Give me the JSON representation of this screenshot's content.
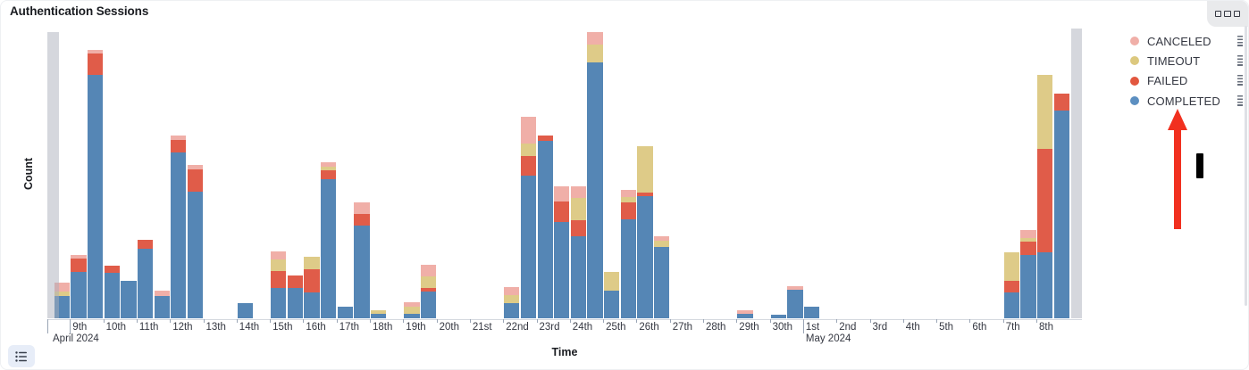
{
  "panel": {
    "title": "Authentication Sessions"
  },
  "icons": {
    "panel_menu": "three-squares-icon",
    "legend_toggle": "list-icon",
    "legend_item_handle": "drag-handle-icon",
    "annotation_arrow": "red-up-arrow"
  },
  "legend": {
    "position": "right",
    "items": [
      {
        "id": "canceled",
        "label": "CANCELED",
        "color": "#F0AFA8"
      },
      {
        "id": "timeout",
        "label": "TIMEOUT",
        "color": "#DCC87E"
      },
      {
        "id": "failed",
        "label": "FAILED",
        "color": "#E2573F"
      },
      {
        "id": "completed",
        "label": "COMPLETED",
        "color": "#5C8FC1"
      }
    ]
  },
  "annotations": {
    "arrow": {
      "color": "#F1301F",
      "direction": "up",
      "points_at": "COMPLETED legend item"
    },
    "marker_bar": {
      "color": "#000000"
    }
  },
  "chart_data": {
    "type": "bar",
    "stacked": true,
    "title": "Authentication Sessions",
    "xlabel": "Time",
    "ylabel": "Count",
    "grid": false,
    "legend_position": "right",
    "ylim": [
      0,
      327
    ],
    "y_tick_labels": [],
    "x_axis": {
      "bucket_interval": "12h",
      "range": "2024-04-08 to 2024-05-09",
      "day_tick_labels": [
        "9th",
        "10th",
        "11th",
        "12th",
        "13th",
        "14th",
        "15th",
        "16th",
        "17th",
        "18th",
        "19th",
        "20th",
        "21st",
        "22nd",
        "23rd",
        "24th",
        "25th",
        "26th",
        "27th",
        "28th",
        "29th",
        "30th",
        "1st",
        "2nd",
        "3rd",
        "4th",
        "5th",
        "6th",
        "7th",
        "8th"
      ],
      "month_labels": [
        {
          "text": "April 2024",
          "under_tick_index": 0
        },
        {
          "text": "May 2024",
          "under_tick_index": 22
        }
      ]
    },
    "note": "values are relative counts (no numeric y ticks shown); stack order bottom-to-top: COMPLETED, FAILED, TIMEOUT, CANCELED",
    "series": [
      {
        "name": "COMPLETED",
        "color": "#5586B5",
        "values": [
          0,
          25,
          52,
          273,
          51,
          42,
          78,
          25,
          186,
          142,
          0,
          0,
          17,
          0,
          34,
          34,
          29,
          156,
          13,
          104,
          5,
          0,
          5,
          30,
          0,
          0,
          0,
          0,
          17,
          160,
          199,
          108,
          92,
          287,
          31,
          111,
          137,
          80,
          0,
          0,
          0,
          0,
          5,
          0,
          4,
          32,
          13,
          0,
          0,
          0,
          0,
          0,
          0,
          0,
          0,
          0,
          0,
          0,
          29,
          71,
          74,
          233,
          0
        ]
      },
      {
        "name": "FAILED",
        "color": "#E05C49",
        "values": [
          0,
          0,
          15,
          24,
          8,
          0,
          10,
          0,
          14,
          25,
          0,
          0,
          0,
          0,
          19,
          14,
          26,
          10,
          0,
          13,
          0,
          0,
          0,
          4,
          0,
          0,
          0,
          0,
          0,
          22,
          6,
          23,
          18,
          0,
          0,
          19,
          4,
          0,
          0,
          0,
          0,
          0,
          0,
          0,
          0,
          0,
          0,
          0,
          0,
          0,
          0,
          0,
          0,
          0,
          0,
          0,
          0,
          0,
          13,
          15,
          116,
          19,
          0
        ]
      },
      {
        "name": "TIMEOUT",
        "color": "#DECB88",
        "values": [
          0,
          5,
          0,
          0,
          0,
          0,
          0,
          0,
          0,
          0,
          0,
          0,
          0,
          0,
          13,
          0,
          14,
          4,
          0,
          0,
          4,
          0,
          8,
          13,
          0,
          0,
          0,
          0,
          9,
          14,
          0,
          0,
          25,
          20,
          21,
          6,
          52,
          7,
          0,
          0,
          0,
          0,
          0,
          0,
          0,
          0,
          0,
          0,
          0,
          0,
          0,
          0,
          0,
          0,
          0,
          0,
          0,
          0,
          32,
          4,
          83,
          0,
          0
        ]
      },
      {
        "name": "CANCELED",
        "color": "#F0AFA8",
        "values": [
          0,
          10,
          4,
          4,
          0,
          0,
          0,
          6,
          5,
          5,
          0,
          0,
          0,
          0,
          9,
          0,
          0,
          5,
          0,
          13,
          0,
          0,
          5,
          13,
          0,
          0,
          0,
          0,
          9,
          30,
          0,
          17,
          13,
          14,
          0,
          8,
          0,
          5,
          0,
          0,
          0,
          0,
          4,
          0,
          0,
          4,
          0,
          0,
          0,
          0,
          0,
          0,
          0,
          0,
          0,
          0,
          0,
          0,
          0,
          9,
          0,
          0,
          0
        ]
      }
    ],
    "partial_buckets": {
      "indices": [
        0,
        62
      ],
      "color": "rgba(171,176,188,0.5)",
      "meaning": "incomplete edge buckets shown gray"
    }
  }
}
